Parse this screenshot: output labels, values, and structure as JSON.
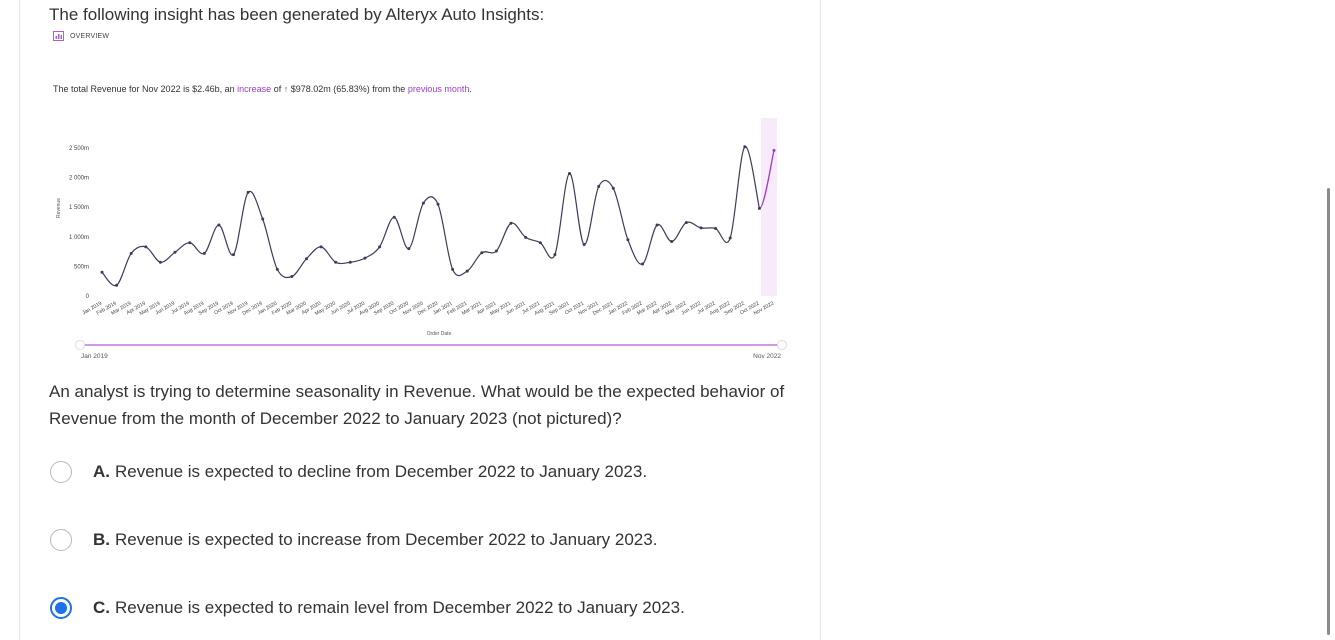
{
  "intro": "The following insight has been generated by Alteryx Auto Insights:",
  "overview_label": "OVERVIEW",
  "insight": {
    "prefix": "The total Revenue for Nov 2022 is $2.46b, an",
    "increase_word": "increase",
    "of_word": "of",
    "arrow": "↑",
    "amount": "$978.02m (65.83%) from the",
    "previous_month": "previous month",
    "period": "."
  },
  "colors": {
    "line": "#3f3a5c",
    "highlight": "#9b3fc8",
    "slider": "#b45bd6",
    "radio_selected": "#1a73e8"
  },
  "chart_data": {
    "type": "line",
    "title": "",
    "ylabel": "Revenue",
    "xlabel": "Order Date",
    "ylim": [
      0,
      2500
    ],
    "yticks": [
      "0",
      "500m",
      "1 000m",
      "1 500m",
      "2 000m",
      "2 500m"
    ],
    "ytick_values": [
      0,
      500,
      1000,
      1500,
      2000,
      2500
    ],
    "categories": [
      "Jan 2019",
      "Feb 2019",
      "Mar 2019",
      "Apr 2019",
      "May 2019",
      "Jun 2019",
      "Jul 2019",
      "Aug 2019",
      "Sep 2019",
      "Oct 2019",
      "Nov 2019",
      "Dec 2019",
      "Jan 2020",
      "Feb 2020",
      "Mar 2020",
      "Apr 2020",
      "May 2020",
      "Jun 2020",
      "Jul 2020",
      "Aug 2020",
      "Sep 2020",
      "Oct 2020",
      "Nov 2020",
      "Dec 2020",
      "Jan 2021",
      "Feb 2021",
      "Mar 2021",
      "Apr 2021",
      "May 2021",
      "Jun 2021",
      "Jul 2021",
      "Aug 2021",
      "Sep 2021",
      "Oct 2021",
      "Nov 2021",
      "Dec 2021",
      "Jan 2022",
      "Feb 2022",
      "Mar 2022",
      "Apr 2022",
      "May 2022",
      "Jun 2022",
      "Jul 2022",
      "Aug 2022",
      "Sep 2022",
      "Oct 2022",
      "Nov 2022"
    ],
    "values": [
      400,
      180,
      720,
      830,
      570,
      740,
      900,
      720,
      1200,
      700,
      1750,
      1300,
      450,
      330,
      630,
      830,
      570,
      570,
      640,
      830,
      1330,
      800,
      1570,
      1550,
      450,
      420,
      730,
      760,
      1230,
      990,
      900,
      700,
      2070,
      870,
      1850,
      1820,
      950,
      540,
      1200,
      920,
      1240,
      1150,
      1140,
      980,
      2520,
      1480,
      2460
    ],
    "range_start_label": "Jan 2019",
    "range_end_label": "Nov 2022"
  },
  "question": "An analyst is trying to determine seasonality in Revenue. What would be the expected behavior of Revenue from the month of December 2022 to January 2023 (not pictured)?",
  "options": [
    {
      "letter": "A.",
      "text": "Revenue is expected to decline from December 2022 to January 2023.",
      "selected": false
    },
    {
      "letter": "B.",
      "text": "Revenue is expected to increase from December 2022 to January 2023.",
      "selected": false
    },
    {
      "letter": "C.",
      "text": "Revenue is expected to remain level from December 2022 to January 2023.",
      "selected": true
    }
  ]
}
